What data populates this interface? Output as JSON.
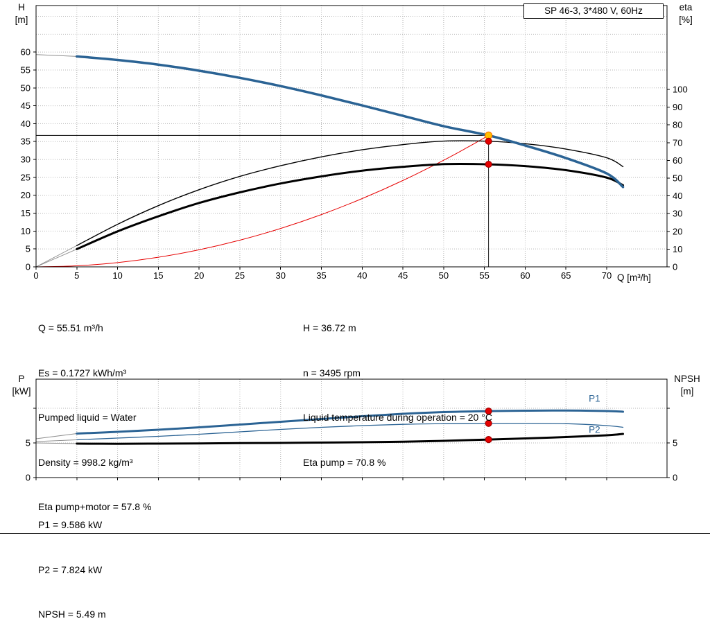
{
  "title_box": "SP 46-3, 3*480 V, 60Hz",
  "axis_titles": {
    "top_left_1": "H",
    "top_left_2": "[m]",
    "top_right_1": "eta",
    "top_right_2": "[%]",
    "x_label": "Q [m³/h]",
    "bottom_left_1": "P",
    "bottom_left_2": "[kW]",
    "bottom_right_1": "NPSH",
    "bottom_right_2": "[m]"
  },
  "info_top_left": [
    "Q = 55.51 m³/h",
    "Es = 0.1727 kWh/m³",
    "Pumped liquid = Water",
    "Density = 998.2 kg/m³",
    "Eta pump+motor = 57.8 %"
  ],
  "info_top_right": [
    "H = 36.72 m",
    "n = 3495 rpm",
    "Liquid temperature during operation = 20 °C",
    "Eta pump = 70.8 %"
  ],
  "info_bottom": [
    "P1 = 9.586 kW",
    "P2 = 7.824 kW",
    "NPSH = 5.49 m"
  ],
  "chart_data": [
    {
      "type": "line",
      "title": "SP 46-3, 3*480 V, 60Hz",
      "x": {
        "min": 0,
        "max": 77.4,
        "ticks": [
          0,
          5,
          10,
          15,
          20,
          25,
          30,
          35,
          40,
          45,
          50,
          55,
          60,
          65,
          70
        ],
        "grid": [
          5,
          10,
          15,
          20,
          25,
          30,
          35,
          40,
          45,
          50,
          55,
          60,
          65,
          70
        ],
        "show_labels": true
      },
      "y_left": {
        "min": 0,
        "max": 73,
        "ticks": [
          0,
          5,
          10,
          15,
          20,
          25,
          30,
          35,
          40,
          45,
          50,
          55,
          60
        ],
        "grid": [
          5,
          10,
          15,
          20,
          25,
          30,
          35,
          40,
          45,
          50,
          55,
          60,
          65,
          70
        ]
      },
      "y_right": {
        "min": 0,
        "max": 147.3,
        "ticks": [
          0,
          10,
          20,
          30,
          40,
          50,
          60,
          70,
          80,
          90,
          100
        ]
      },
      "series": [
        {
          "name": "head-lead",
          "axis": "left",
          "color": "#8c8c8c",
          "width": 1,
          "q": [
            0,
            5
          ],
          "v": [
            59.3,
            58.8
          ]
        },
        {
          "name": "eta-pump-lead",
          "axis": "right",
          "color": "#8c8c8c",
          "width": 0.9,
          "q": [
            0,
            5
          ],
          "v": [
            0,
            12
          ]
        },
        {
          "name": "eta-pump-motor-lead",
          "axis": "right",
          "color": "#8c8c8c",
          "width": 0.9,
          "q": [
            0,
            5
          ],
          "v": [
            0,
            10
          ]
        },
        {
          "name": "system-curve",
          "axis": "left",
          "color": "#e60000",
          "width": 1,
          "q": [
            0,
            5,
            10,
            15,
            20,
            25,
            30,
            35,
            40,
            45,
            50,
            53,
            55.51
          ],
          "v": [
            0,
            0.3,
            1.19,
            2.68,
            4.77,
            7.45,
            10.73,
            14.6,
            19.07,
            24.13,
            29.79,
            33.48,
            36.72
          ]
        },
        {
          "name": "eta-pump",
          "axis": "right",
          "color": "#000000",
          "width": 1.4,
          "q": [
            5,
            10,
            15,
            20,
            25,
            30,
            35,
            40,
            45,
            50,
            55.51,
            60,
            65,
            70,
            72
          ],
          "v": [
            12,
            24,
            34.5,
            43.5,
            51,
            57,
            62,
            66,
            68.9,
            70.9,
            70.8,
            69.4,
            66.4,
            61.5,
            56.5
          ]
        },
        {
          "name": "eta-pump-motor",
          "axis": "right",
          "color": "#000000",
          "width": 3,
          "q": [
            5,
            10,
            15,
            20,
            25,
            30,
            35,
            40,
            45,
            50,
            55.51,
            60,
            65,
            70,
            72
          ],
          "v": [
            10,
            20,
            28.5,
            36,
            42,
            47,
            51,
            54.2,
            56.4,
            57.9,
            57.8,
            56.8,
            54.5,
            50.3,
            46
          ]
        },
        {
          "name": "head",
          "axis": "left",
          "color": "#2b6394",
          "width": 3.5,
          "q": [
            5,
            10,
            15,
            20,
            25,
            30,
            35,
            40,
            45,
            50,
            55.51,
            60,
            65,
            70,
            72
          ],
          "v": [
            58.8,
            57.8,
            56.5,
            54.8,
            52.8,
            50.5,
            47.9,
            45.1,
            42.2,
            39.3,
            36.72,
            33.9,
            30.4,
            26.1,
            22.3
          ]
        }
      ],
      "crosshair": {
        "q": 55.51,
        "v": 36.72,
        "axis": "left"
      },
      "markers": [
        {
          "name": "duty-point",
          "q": 55.51,
          "v": 36.72,
          "axis": "left",
          "fill": "#ffc000",
          "stroke": "#ff7800",
          "r": 5
        },
        {
          "name": "eta-pump-point",
          "q": 55.51,
          "v": 70.8,
          "axis": "right",
          "fill": "#e60000",
          "stroke": "#a00000",
          "r": 4.5
        },
        {
          "name": "eta-pump-motor-point",
          "q": 55.51,
          "v": 57.8,
          "axis": "right",
          "fill": "#e60000",
          "stroke": "#a00000",
          "r": 4.5
        }
      ],
      "labels": []
    },
    {
      "type": "line",
      "x": {
        "min": 0,
        "max": 77.4,
        "ticks": [
          0,
          5,
          10,
          15,
          20,
          25,
          30,
          35,
          40,
          45,
          50,
          55,
          60,
          65,
          70
        ],
        "grid": [
          5,
          10,
          15,
          20,
          25,
          30,
          35,
          40,
          45,
          50,
          55,
          60,
          65,
          70
        ],
        "show_labels": false
      },
      "y_left": {
        "min": 0,
        "max": 14.2,
        "ticks": [
          0,
          5,
          10
        ],
        "labels": [
          "0",
          "5",
          ""
        ],
        "grid": [
          5,
          10
        ]
      },
      "y_right": {
        "min": 0,
        "max": 14.2,
        "ticks": [
          0,
          5,
          10
        ],
        "labels": [
          "0",
          "5",
          ""
        ]
      },
      "series": [
        {
          "name": "p1-lead",
          "axis": "left",
          "color": "#8c8c8c",
          "width": 0.9,
          "q": [
            0,
            5
          ],
          "v": [
            5.6,
            6.35
          ]
        },
        {
          "name": "p2-lead",
          "axis": "left",
          "color": "#8c8c8c",
          "width": 0.9,
          "q": [
            0,
            5
          ],
          "v": [
            5.2,
            5.45
          ]
        },
        {
          "name": "npsh-lead",
          "axis": "left",
          "color": "#8c8c8c",
          "width": 0.9,
          "q": [
            0,
            5
          ],
          "v": [
            5.0,
            4.9
          ]
        },
        {
          "name": "p2-curve",
          "axis": "left",
          "color": "#2b6394",
          "width": 1.3,
          "q": [
            5,
            10,
            15,
            20,
            25,
            30,
            35,
            40,
            45,
            50,
            55.51,
            60,
            65,
            70,
            72
          ],
          "v": [
            5.45,
            5.7,
            5.95,
            6.25,
            6.6,
            6.95,
            7.25,
            7.5,
            7.68,
            7.78,
            7.824,
            7.84,
            7.78,
            7.5,
            7.25
          ]
        },
        {
          "name": "p1-curve",
          "axis": "left",
          "color": "#2b6394",
          "width": 3,
          "q": [
            5,
            10,
            15,
            20,
            25,
            30,
            35,
            40,
            45,
            50,
            55.51,
            60,
            65,
            70,
            72
          ],
          "v": [
            6.35,
            6.6,
            6.9,
            7.25,
            7.65,
            8.05,
            8.45,
            8.85,
            9.2,
            9.45,
            9.586,
            9.65,
            9.68,
            9.6,
            9.5
          ]
        },
        {
          "name": "npsh-curve",
          "axis": "left",
          "color": "#000000",
          "width": 3,
          "q": [
            5,
            10,
            15,
            20,
            25,
            30,
            35,
            40,
            45,
            50,
            55.51,
            60,
            65,
            70,
            72
          ],
          "v": [
            4.9,
            4.88,
            4.9,
            4.93,
            4.97,
            5.0,
            5.05,
            5.1,
            5.18,
            5.3,
            5.49,
            5.65,
            5.85,
            6.1,
            6.3
          ]
        }
      ],
      "markers": [
        {
          "name": "p1-point",
          "q": 55.51,
          "v": 9.586,
          "axis": "left",
          "fill": "#e60000",
          "stroke": "#a00000",
          "r": 4.5
        },
        {
          "name": "p2-point",
          "q": 55.51,
          "v": 7.824,
          "axis": "left",
          "fill": "#e60000",
          "stroke": "#a00000",
          "r": 4.5
        },
        {
          "name": "npsh-point",
          "q": 55.51,
          "v": 5.49,
          "axis": "left",
          "fill": "#e60000",
          "stroke": "#a00000",
          "r": 4.5
        }
      ],
      "labels": [
        {
          "text": "P1",
          "q": 67.8,
          "v": 10.95,
          "color": "#2b6394"
        },
        {
          "text": "P2",
          "q": 67.8,
          "v": 6.45,
          "color": "#2b6394"
        }
      ]
    }
  ]
}
